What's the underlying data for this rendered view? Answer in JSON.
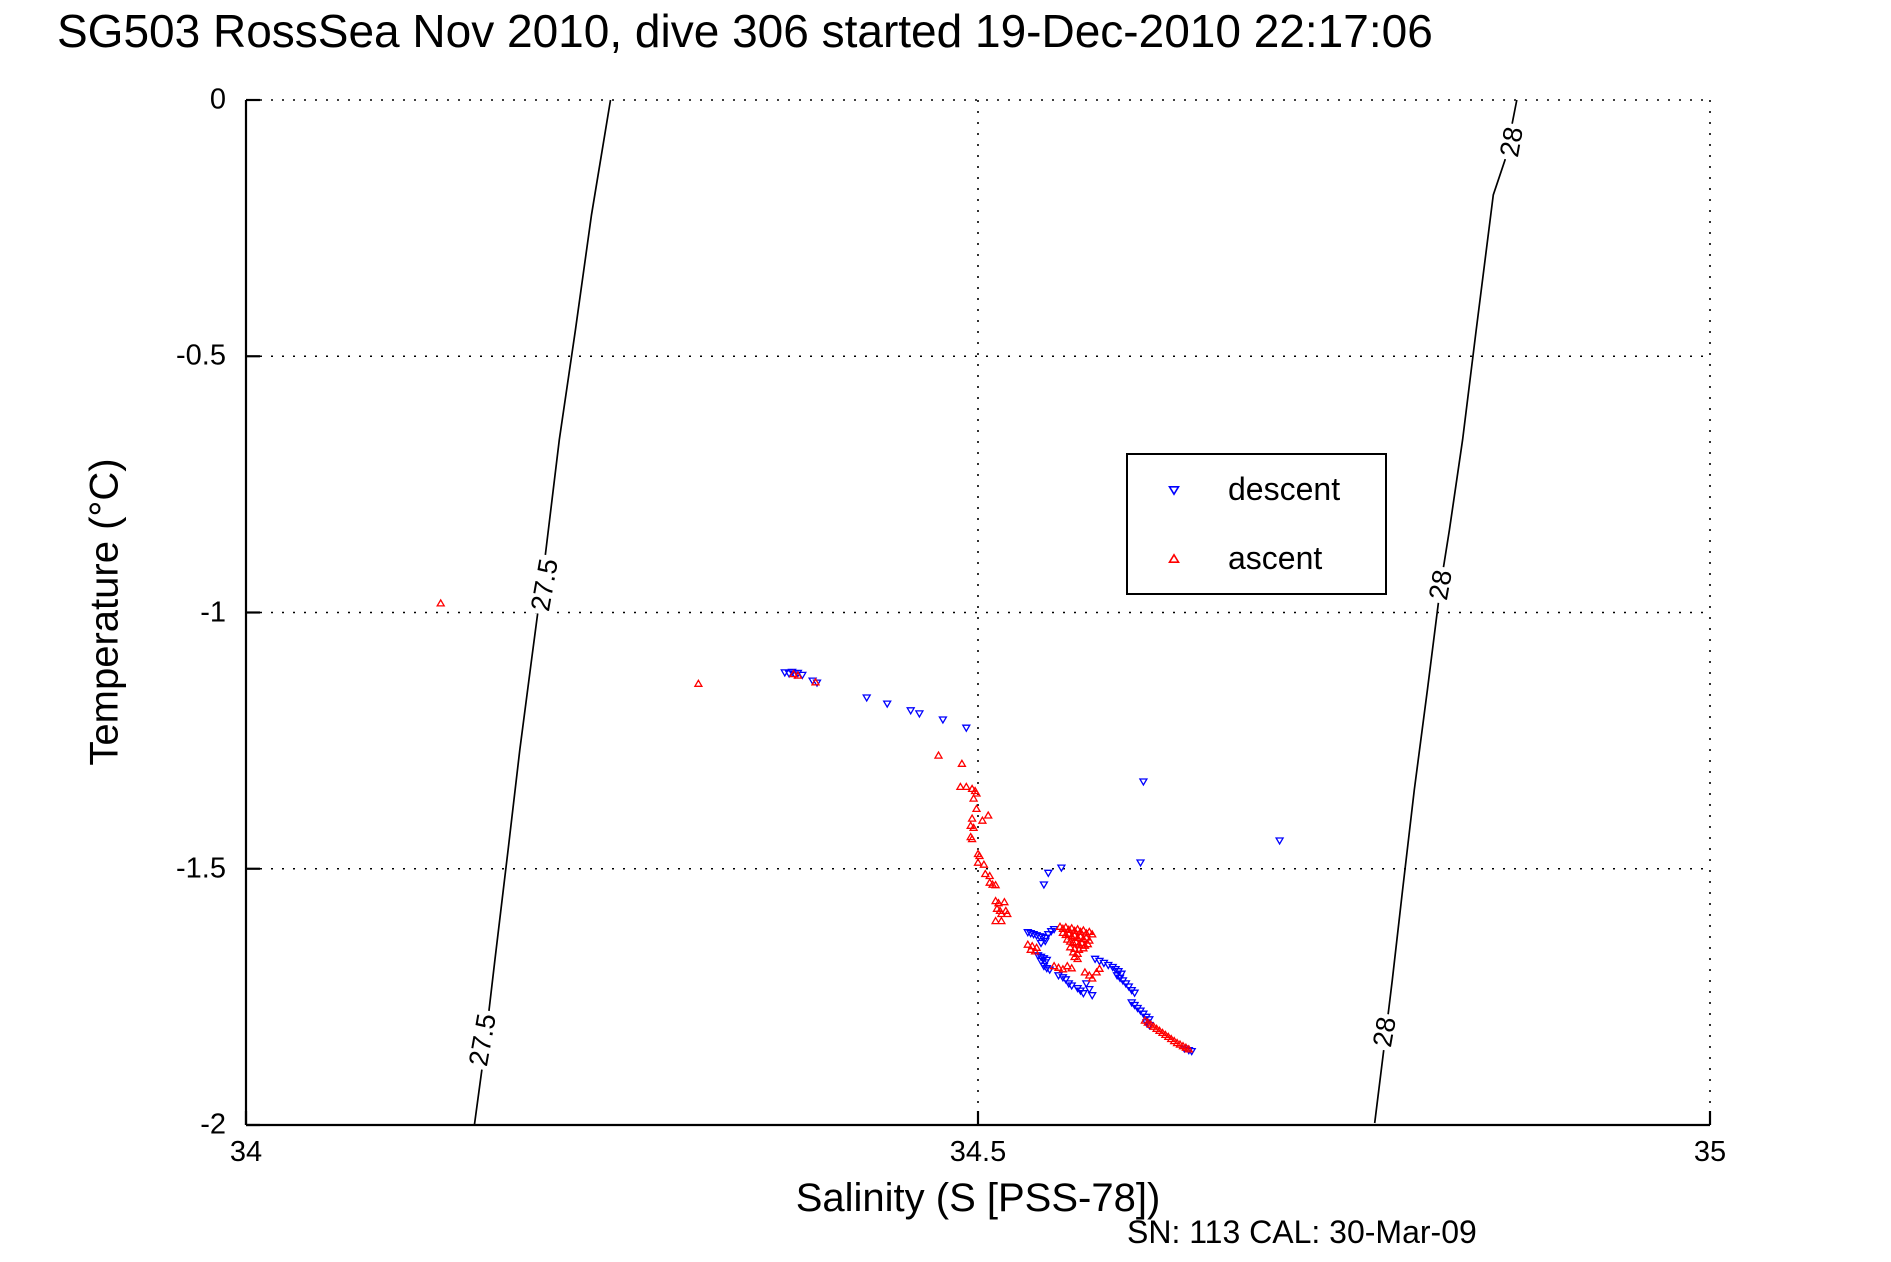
{
  "title": "SG503 RossSea Nov 2010, dive 306 started 19-Dec-2010 22:17:06",
  "annotation": "SN: 113  CAL: 30-Mar-09",
  "chart_data": {
    "type": "scatter",
    "title": "SG503 RossSea Nov 2010, dive 306 started 19-Dec-2010 22:17:06",
    "xlabel": "Salinity (S [PSS-78])",
    "ylabel": "Temperature (°C)",
    "xlim": [
      34,
      35
    ],
    "ylim": [
      -2,
      0
    ],
    "grid": "dotted",
    "background": "#ffffff",
    "axis_color": "#000000",
    "x_ticks": [
      {
        "value": 34,
        "label": "34",
        "gridline": false
      },
      {
        "value": 34.5,
        "label": "34.5",
        "gridline": true
      },
      {
        "value": 35,
        "label": "35",
        "gridline": true
      }
    ],
    "y_ticks": [
      {
        "value": 0,
        "label": "0",
        "gridline": true
      },
      {
        "value": -0.5,
        "label": "-0.5",
        "gridline": true
      },
      {
        "value": -1,
        "label": "-1",
        "gridline": true
      },
      {
        "value": -1.5,
        "label": "-1.5",
        "gridline": true
      },
      {
        "value": -2,
        "label": "-2",
        "gridline": false
      }
    ],
    "legend": {
      "position": "upper-right-inside"
    },
    "series": [
      {
        "name": "descent",
        "marker": "triangle-down",
        "color": "#0000ff",
        "points": [
          [
            34.368,
            -1.117
          ],
          [
            34.371,
            -1.119
          ],
          [
            34.373,
            -1.116
          ],
          [
            34.375,
            -1.121
          ],
          [
            34.377,
            -1.118
          ],
          [
            34.38,
            -1.122
          ],
          [
            34.387,
            -1.133
          ],
          [
            34.39,
            -1.137
          ],
          [
            34.424,
            -1.166
          ],
          [
            34.438,
            -1.178
          ],
          [
            34.454,
            -1.191
          ],
          [
            34.46,
            -1.197
          ],
          [
            34.476,
            -1.209
          ],
          [
            34.492,
            -1.225
          ],
          [
            34.613,
            -1.33
          ],
          [
            34.706,
            -1.445
          ],
          [
            34.611,
            -1.488
          ],
          [
            34.557,
            -1.498
          ],
          [
            34.548,
            -1.508
          ],
          [
            34.545,
            -1.531
          ],
          [
            34.534,
            -1.624
          ],
          [
            34.536,
            -1.626
          ],
          [
            34.538,
            -1.628
          ],
          [
            34.54,
            -1.63
          ],
          [
            34.542,
            -1.632
          ],
          [
            34.544,
            -1.633
          ],
          [
            34.546,
            -1.635
          ],
          [
            34.548,
            -1.628
          ],
          [
            34.55,
            -1.622
          ],
          [
            34.552,
            -1.618
          ],
          [
            34.546,
            -1.641
          ],
          [
            34.543,
            -1.645
          ],
          [
            34.541,
            -1.669
          ],
          [
            34.543,
            -1.672
          ],
          [
            34.545,
            -1.675
          ],
          [
            34.547,
            -1.678
          ],
          [
            34.543,
            -1.68
          ],
          [
            34.546,
            -1.683
          ],
          [
            34.545,
            -1.69
          ],
          [
            34.547,
            -1.694
          ],
          [
            34.549,
            -1.697
          ],
          [
            34.555,
            -1.708
          ],
          [
            34.558,
            -1.712
          ],
          [
            34.56,
            -1.716
          ],
          [
            34.562,
            -1.724
          ],
          [
            34.564,
            -1.728
          ],
          [
            34.568,
            -1.733
          ],
          [
            34.57,
            -1.738
          ],
          [
            34.572,
            -1.743
          ],
          [
            34.574,
            -1.724
          ],
          [
            34.576,
            -1.735
          ],
          [
            34.578,
            -1.747
          ],
          [
            34.58,
            -1.676
          ],
          [
            34.583,
            -1.68
          ],
          [
            34.586,
            -1.684
          ],
          [
            34.589,
            -1.688
          ],
          [
            34.592,
            -1.692
          ],
          [
            34.594,
            -1.696
          ],
          [
            34.596,
            -1.7
          ],
          [
            34.598,
            -1.705
          ],
          [
            34.595,
            -1.708
          ],
          [
            34.597,
            -1.713
          ],
          [
            34.599,
            -1.718
          ],
          [
            34.601,
            -1.724
          ],
          [
            34.603,
            -1.73
          ],
          [
            34.605,
            -1.737
          ],
          [
            34.607,
            -1.742
          ],
          [
            34.605,
            -1.761
          ],
          [
            34.607,
            -1.766
          ],
          [
            34.609,
            -1.772
          ],
          [
            34.611,
            -1.777
          ],
          [
            34.613,
            -1.783
          ],
          [
            34.615,
            -1.789
          ],
          [
            34.617,
            -1.794
          ],
          [
            34.615,
            -1.8
          ],
          [
            34.617,
            -1.805
          ],
          [
            34.641,
            -1.851
          ],
          [
            34.644,
            -1.854
          ],
          [
            34.646,
            -1.856
          ]
        ]
      },
      {
        "name": "ascent",
        "marker": "triangle-up",
        "color": "#ff0000",
        "points": [
          [
            34.133,
            -0.982
          ],
          [
            34.309,
            -1.139
          ],
          [
            34.374,
            -1.12
          ],
          [
            34.377,
            -1.123
          ],
          [
            34.389,
            -1.136
          ],
          [
            34.473,
            -1.279
          ],
          [
            34.489,
            -1.295
          ],
          [
            34.488,
            -1.34
          ],
          [
            34.492,
            -1.34
          ],
          [
            34.496,
            -1.344
          ],
          [
            34.498,
            -1.348
          ],
          [
            34.499,
            -1.353
          ],
          [
            34.497,
            -1.363
          ],
          [
            34.499,
            -1.383
          ],
          [
            34.507,
            -1.396
          ],
          [
            34.496,
            -1.402
          ],
          [
            34.503,
            -1.406
          ],
          [
            34.495,
            -1.416
          ],
          [
            34.497,
            -1.42
          ],
          [
            34.495,
            -1.438
          ],
          [
            34.496,
            -1.442
          ],
          [
            34.5,
            -1.471
          ],
          [
            34.501,
            -1.475
          ],
          [
            34.5,
            -1.488
          ],
          [
            34.504,
            -1.492
          ],
          [
            34.505,
            -1.51
          ],
          [
            34.508,
            -1.514
          ],
          [
            34.508,
            -1.527
          ],
          [
            34.51,
            -1.531
          ],
          [
            34.512,
            -1.532
          ],
          [
            34.512,
            -1.563
          ],
          [
            34.514,
            -1.567
          ],
          [
            34.518,
            -1.565
          ],
          [
            34.513,
            -1.578
          ],
          [
            34.515,
            -1.582
          ],
          [
            34.519,
            -1.582
          ],
          [
            34.516,
            -1.588
          ],
          [
            34.52,
            -1.588
          ],
          [
            34.512,
            -1.602
          ],
          [
            34.516,
            -1.602
          ],
          [
            34.534,
            -1.648
          ],
          [
            34.537,
            -1.651
          ],
          [
            34.54,
            -1.654
          ],
          [
            34.536,
            -1.658
          ],
          [
            34.539,
            -1.661
          ],
          [
            34.556,
            -1.613
          ],
          [
            34.558,
            -1.617
          ],
          [
            34.56,
            -1.614
          ],
          [
            34.562,
            -1.619
          ],
          [
            34.564,
            -1.616
          ],
          [
            34.566,
            -1.621
          ],
          [
            34.568,
            -1.618
          ],
          [
            34.57,
            -1.623
          ],
          [
            34.572,
            -1.62
          ],
          [
            34.574,
            -1.626
          ],
          [
            34.576,
            -1.623
          ],
          [
            34.578,
            -1.628
          ],
          [
            34.558,
            -1.625
          ],
          [
            34.56,
            -1.629
          ],
          [
            34.562,
            -1.627
          ],
          [
            34.564,
            -1.632
          ],
          [
            34.566,
            -1.63
          ],
          [
            34.568,
            -1.635
          ],
          [
            34.57,
            -1.632
          ],
          [
            34.572,
            -1.637
          ],
          [
            34.574,
            -1.634
          ],
          [
            34.576,
            -1.64
          ],
          [
            34.561,
            -1.638
          ],
          [
            34.563,
            -1.642
          ],
          [
            34.565,
            -1.645
          ],
          [
            34.567,
            -1.643
          ],
          [
            34.569,
            -1.648
          ],
          [
            34.571,
            -1.645
          ],
          [
            34.573,
            -1.65
          ],
          [
            34.575,
            -1.647
          ],
          [
            34.563,
            -1.653
          ],
          [
            34.566,
            -1.656
          ],
          [
            34.569,
            -1.658
          ],
          [
            34.572,
            -1.655
          ],
          [
            34.565,
            -1.663
          ],
          [
            34.568,
            -1.666
          ],
          [
            34.566,
            -1.672
          ],
          [
            34.568,
            -1.676
          ],
          [
            34.552,
            -1.69
          ],
          [
            34.555,
            -1.693
          ],
          [
            34.558,
            -1.696
          ],
          [
            34.561,
            -1.69
          ],
          [
            34.564,
            -1.694
          ],
          [
            34.573,
            -1.702
          ],
          [
            34.576,
            -1.708
          ],
          [
            34.578,
            -1.714
          ],
          [
            34.583,
            -1.695
          ],
          [
            34.581,
            -1.702
          ],
          [
            34.614,
            -1.796
          ],
          [
            34.616,
            -1.8
          ],
          [
            34.618,
            -1.804
          ],
          [
            34.62,
            -1.808
          ],
          [
            34.622,
            -1.812
          ],
          [
            34.624,
            -1.816
          ],
          [
            34.626,
            -1.82
          ],
          [
            34.628,
            -1.824
          ],
          [
            34.63,
            -1.828
          ],
          [
            34.632,
            -1.832
          ],
          [
            34.634,
            -1.836
          ],
          [
            34.636,
            -1.84
          ],
          [
            34.638,
            -1.843
          ],
          [
            34.64,
            -1.846
          ],
          [
            34.642,
            -1.849
          ],
          [
            34.644,
            -1.852
          ]
        ]
      }
    ],
    "contours": [
      {
        "level": "27.5",
        "color": "#000000",
        "path": [
          [
            34.249,
            0
          ],
          [
            34.236,
            -0.224
          ],
          [
            34.225,
            -0.449
          ],
          [
            34.214,
            -0.663
          ],
          [
            34.204,
            -0.898
          ],
          [
            34.195,
            -1.093
          ],
          [
            34.187,
            -1.268
          ],
          [
            34.179,
            -1.463
          ],
          [
            34.17,
            -1.678
          ],
          [
            34.162,
            -1.873
          ],
          [
            34.156,
            -2.0
          ]
        ],
        "labels": [
          {
            "text": "27.5",
            "s": 34.204,
            "t": -0.947,
            "rotation": -80
          },
          {
            "text": "27.5",
            "s": 34.162,
            "t": -1.835,
            "rotation": -80
          }
        ]
      },
      {
        "level": "28",
        "color": "#000000",
        "path": [
          [
            34.868,
            0
          ],
          [
            34.86,
            -0.117
          ],
          [
            34.852,
            -0.185
          ],
          [
            34.84,
            -0.455
          ],
          [
            34.831,
            -0.663
          ],
          [
            34.822,
            -0.839
          ],
          [
            34.816,
            -0.947
          ],
          [
            34.807,
            -1.151
          ],
          [
            34.798,
            -1.346
          ],
          [
            34.79,
            -1.541
          ],
          [
            34.783,
            -1.717
          ],
          [
            34.778,
            -1.834
          ],
          [
            34.771,
            -1.996
          ]
        ],
        "labels": [
          {
            "text": "28",
            "s": 34.865,
            "t": -0.082,
            "rotation": -80
          },
          {
            "text": "28",
            "s": 34.816,
            "t": -0.947,
            "rotation": -80
          },
          {
            "text": "28",
            "s": 34.778,
            "t": -1.819,
            "rotation": -80
          }
        ]
      }
    ]
  }
}
